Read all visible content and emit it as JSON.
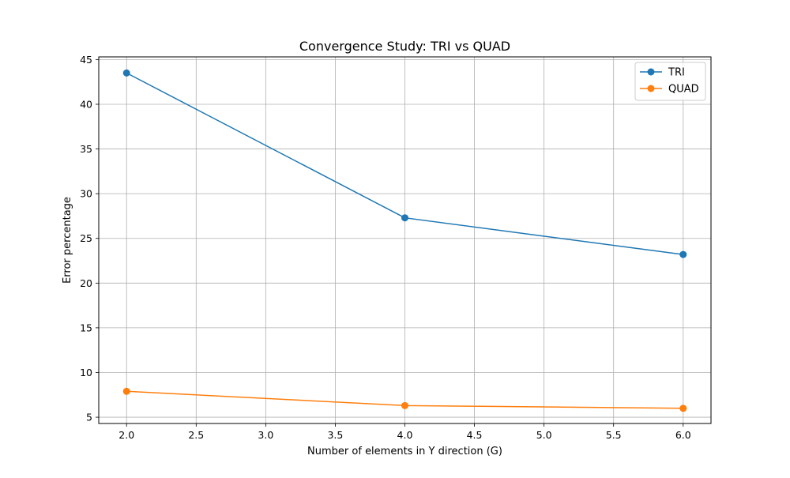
{
  "chart_data": {
    "type": "line",
    "title": "Convergence Study: TRI vs QUAD",
    "xlabel": "Number of elements in Y direction (G)",
    "ylabel": "Error percentage",
    "xlim": [
      1.8,
      6.2
    ],
    "ylim": [
      4.3,
      45.3
    ],
    "xticks": [
      2.0,
      2.5,
      3.0,
      3.5,
      4.0,
      4.5,
      5.0,
      5.5,
      6.0
    ],
    "xtick_labels": [
      "2.0",
      "2.5",
      "3.0",
      "3.5",
      "4.0",
      "4.5",
      "5.0",
      "5.5",
      "6.0"
    ],
    "yticks": [
      5,
      10,
      15,
      20,
      25,
      30,
      35,
      40,
      45
    ],
    "ytick_labels": [
      "5",
      "10",
      "15",
      "20",
      "25",
      "30",
      "35",
      "40",
      "45"
    ],
    "grid": true,
    "legend_position": "top-right",
    "series": [
      {
        "name": "TRI",
        "color": "#1f77b4",
        "marker": "circle",
        "x": [
          2,
          4,
          6
        ],
        "y": [
          43.5,
          27.3,
          23.2
        ]
      },
      {
        "name": "QUAD",
        "color": "#ff7f0e",
        "marker": "circle",
        "x": [
          2,
          4,
          6
        ],
        "y": [
          7.9,
          6.3,
          6.0
        ]
      }
    ]
  }
}
